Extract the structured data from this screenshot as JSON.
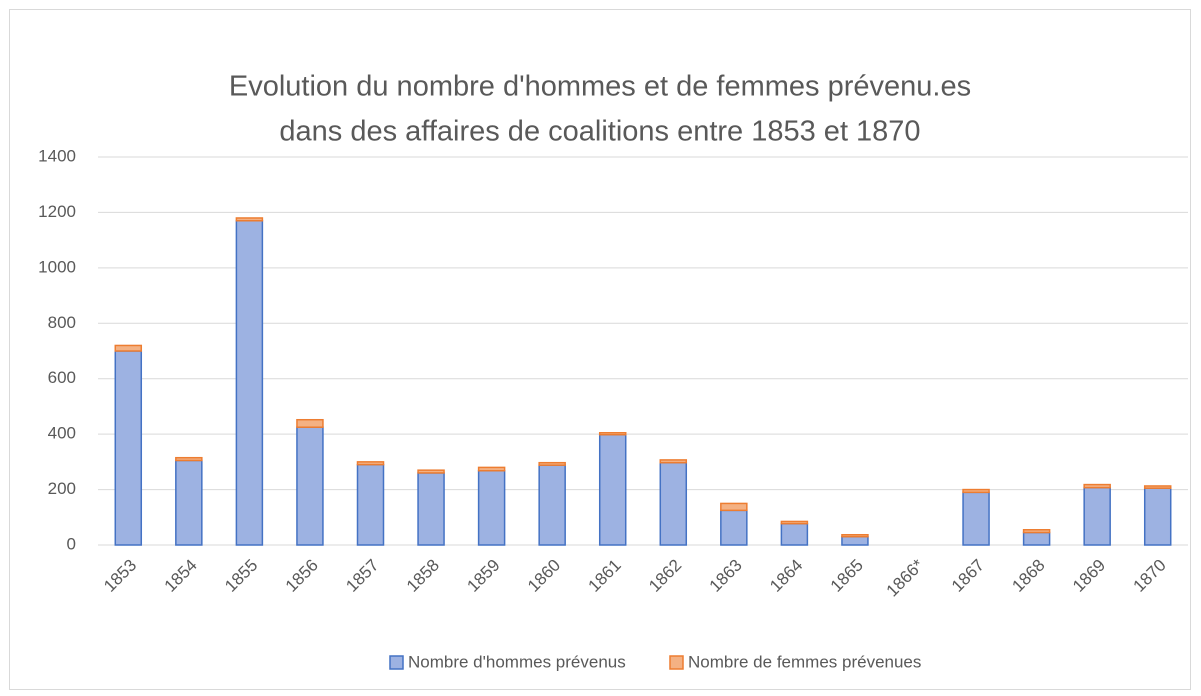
{
  "chart_data": {
    "type": "stacked_bar",
    "title": [
      "Evolution du nombre d'hommes et de femmes prévenu.es",
      "dans des affaires de coalitions entre 1853 et 1870"
    ],
    "categories": [
      "1853",
      "1854",
      "1855",
      "1856",
      "1857",
      "1858",
      "1859",
      "1860",
      "1861",
      "1862",
      "1863",
      "1864",
      "1865",
      "1866*",
      "1867",
      "1868",
      "1869",
      "1870"
    ],
    "series": [
      {
        "name": "Nombre d'hommes prévenus",
        "color": "#9db2e2",
        "values": [
          700,
          305,
          1170,
          425,
          290,
          260,
          268,
          288,
          398,
          297,
          125,
          77,
          30,
          null,
          190,
          45,
          207,
          205
        ]
      },
      {
        "name": "Nombre de femmes prévenues",
        "color": "#f4b183",
        "values": [
          20,
          10,
          10,
          27,
          10,
          10,
          12,
          9,
          7,
          10,
          25,
          8,
          7,
          null,
          10,
          10,
          11,
          8
        ]
      }
    ],
    "ylim": [
      0,
      1400
    ],
    "yticks": [
      0,
      200,
      400,
      600,
      800,
      1000,
      1200,
      1400
    ],
    "grid": true
  }
}
